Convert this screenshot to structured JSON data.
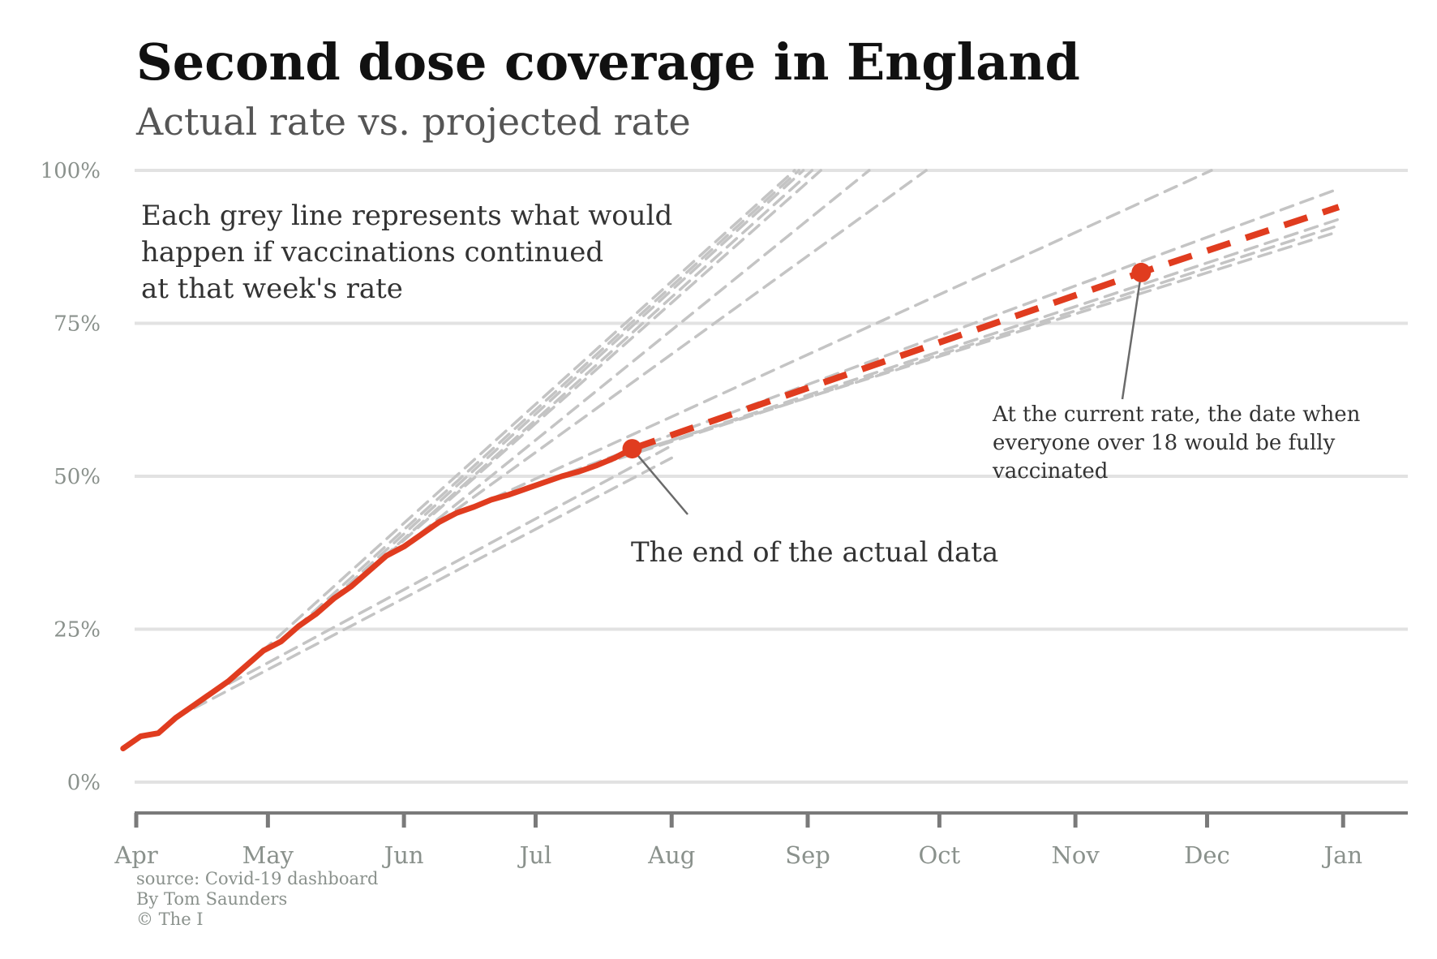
{
  "colors": {
    "actual": "#e03c1f",
    "projection": "#c4c4c4",
    "gridline": "#e2e2e2",
    "axis": "#7a7a7a",
    "title": "#111111",
    "subtitle": "#555555",
    "tick": "#8a918c"
  },
  "chart_data": {
    "type": "line",
    "title": "Second dose coverage in England",
    "subtitle": "Actual rate vs. projected rate",
    "x_axis": {
      "type": "date",
      "range": [
        "2021-04-01",
        "2022-01-15"
      ],
      "ticks": [
        {
          "label": "Apr",
          "date": "2021-04-01"
        },
        {
          "label": "May",
          "date": "2021-05-01"
        },
        {
          "label": "Jun",
          "date": "2021-06-01"
        },
        {
          "label": "Jul",
          "date": "2021-07-01"
        },
        {
          "label": "Aug",
          "date": "2021-08-01"
        },
        {
          "label": "Sep",
          "date": "2021-09-01"
        },
        {
          "label": "Oct",
          "date": "2021-10-01"
        },
        {
          "label": "Nov",
          "date": "2021-11-01"
        },
        {
          "label": "Dec",
          "date": "2021-12-01"
        },
        {
          "label": "Jan",
          "date": "2022-01-01"
        }
      ]
    },
    "y_axis": {
      "range": [
        0,
        100
      ],
      "ticks": [
        {
          "label": "0%",
          "value": 0
        },
        {
          "label": "25%",
          "value": 25
        },
        {
          "label": "50%",
          "value": 50
        },
        {
          "label": "75%",
          "value": 75
        },
        {
          "label": "100%",
          "value": 100
        }
      ]
    },
    "grid": true,
    "series": [
      {
        "kind": "actual",
        "style": "solid",
        "points": [
          {
            "x": "2021-03-29",
            "y": 5.5
          },
          {
            "x": "2021-04-02",
            "y": 7.5
          },
          {
            "x": "2021-04-06",
            "y": 8.0
          },
          {
            "x": "2021-04-10",
            "y": 10.5
          },
          {
            "x": "2021-04-14",
            "y": 12.5
          },
          {
            "x": "2021-04-18",
            "y": 14.5
          },
          {
            "x": "2021-04-22",
            "y": 16.5
          },
          {
            "x": "2021-04-26",
            "y": 19.0
          },
          {
            "x": "2021-04-30",
            "y": 21.5
          },
          {
            "x": "2021-05-04",
            "y": 23.0
          },
          {
            "x": "2021-05-08",
            "y": 25.5
          },
          {
            "x": "2021-05-12",
            "y": 27.5
          },
          {
            "x": "2021-05-16",
            "y": 30.0
          },
          {
            "x": "2021-05-20",
            "y": 32.0
          },
          {
            "x": "2021-05-24",
            "y": 34.5
          },
          {
            "x": "2021-05-28",
            "y": 37.0
          },
          {
            "x": "2021-06-01",
            "y": 38.5
          },
          {
            "x": "2021-06-05",
            "y": 40.5
          },
          {
            "x": "2021-06-09",
            "y": 42.5
          },
          {
            "x": "2021-06-13",
            "y": 44.0
          },
          {
            "x": "2021-06-17",
            "y": 45.0
          },
          {
            "x": "2021-06-21",
            "y": 46.2
          },
          {
            "x": "2021-06-25",
            "y": 47.0
          },
          {
            "x": "2021-06-29",
            "y": 48.0
          },
          {
            "x": "2021-07-03",
            "y": 49.0
          },
          {
            "x": "2021-07-07",
            "y": 50.0
          },
          {
            "x": "2021-07-11",
            "y": 50.8
          },
          {
            "x": "2021-07-15",
            "y": 51.8
          },
          {
            "x": "2021-07-19",
            "y": 53.0
          },
          {
            "x": "2021-07-23",
            "y": 54.5
          }
        ]
      },
      {
        "kind": "current-rate-projection",
        "style": "dashed",
        "points": [
          {
            "x": "2021-07-23",
            "y": 54.5
          },
          {
            "x": "2021-11-16",
            "y": 83.3
          },
          {
            "x": "2021-12-31",
            "y": 94.0
          }
        ]
      },
      {
        "kind": "weekly-projection",
        "style": "dashed",
        "points": [
          {
            "x": "2021-04-26",
            "y": 19.0
          },
          {
            "x": "2021-08-29",
            "y": 100
          }
        ]
      },
      {
        "kind": "weekly-projection",
        "style": "dashed",
        "points": [
          {
            "x": "2021-05-04",
            "y": 23.0
          },
          {
            "x": "2021-08-30",
            "y": 100
          }
        ]
      },
      {
        "kind": "weekly-projection",
        "style": "dashed",
        "points": [
          {
            "x": "2021-05-12",
            "y": 27.5
          },
          {
            "x": "2021-08-31",
            "y": 100
          }
        ]
      },
      {
        "kind": "weekly-projection",
        "style": "dashed",
        "points": [
          {
            "x": "2021-05-20",
            "y": 32.0
          },
          {
            "x": "2021-09-02",
            "y": 100
          }
        ]
      },
      {
        "kind": "weekly-projection",
        "style": "dashed",
        "points": [
          {
            "x": "2021-05-28",
            "y": 37.0
          },
          {
            "x": "2021-09-04",
            "y": 100
          }
        ]
      },
      {
        "kind": "weekly-projection",
        "style": "dashed",
        "points": [
          {
            "x": "2021-06-01",
            "y": 38.5
          },
          {
            "x": "2021-09-15",
            "y": 100
          }
        ]
      },
      {
        "kind": "weekly-projection",
        "style": "dashed",
        "points": [
          {
            "x": "2021-06-09",
            "y": 42.5
          },
          {
            "x": "2021-09-28",
            "y": 100
          }
        ]
      },
      {
        "kind": "weekly-projection",
        "style": "dashed",
        "points": [
          {
            "x": "2021-06-17",
            "y": 45.0
          },
          {
            "x": "2021-12-02",
            "y": 100
          }
        ]
      },
      {
        "kind": "weekly-projection",
        "style": "dashed",
        "points": [
          {
            "x": "2021-06-25",
            "y": 47.0
          },
          {
            "x": "2021-12-31",
            "y": 97.0
          }
        ]
      },
      {
        "kind": "weekly-projection",
        "style": "dashed",
        "points": [
          {
            "x": "2021-07-03",
            "y": 49.0
          },
          {
            "x": "2021-12-31",
            "y": 92.0
          }
        ]
      },
      {
        "kind": "weekly-projection",
        "style": "dashed",
        "points": [
          {
            "x": "2021-07-11",
            "y": 50.8
          },
          {
            "x": "2021-12-31",
            "y": 91.0
          }
        ]
      },
      {
        "kind": "weekly-projection",
        "style": "dashed",
        "points": [
          {
            "x": "2021-07-19",
            "y": 53.0
          },
          {
            "x": "2021-12-31",
            "y": 90.0
          }
        ]
      },
      {
        "kind": "weekly-projection",
        "style": "dashed",
        "points": [
          {
            "x": "2021-04-10",
            "y": 10.5
          },
          {
            "x": "2021-08-01",
            "y": 53.0
          }
        ]
      },
      {
        "kind": "weekly-projection",
        "style": "dashed",
        "points": [
          {
            "x": "2021-04-18",
            "y": 14.5
          },
          {
            "x": "2021-08-01",
            "y": 55.0
          }
        ]
      }
    ],
    "markers": [
      {
        "name": "end-of-actual",
        "x": "2021-07-23",
        "y": 54.5
      },
      {
        "name": "projected-completion",
        "x": "2021-11-16",
        "y": 83.3
      }
    ],
    "annotations": [
      {
        "name": "grey-lines-note",
        "lines": [
          "Each grey line represents what would",
          "happen if vaccinations continued",
          "at that week's rate"
        ]
      },
      {
        "name": "end-of-data-note",
        "lines": [
          "The end of the actual data"
        ],
        "target": "end-of-actual"
      },
      {
        "name": "current-rate-note",
        "lines": [
          "At the current rate, the date when",
          "everyone over 18 would be fully",
          "vaccinated"
        ],
        "target": "projected-completion"
      }
    ],
    "credits": [
      "source: Covid-19 dashboard",
      "By Tom Saunders",
      "© The I"
    ]
  }
}
